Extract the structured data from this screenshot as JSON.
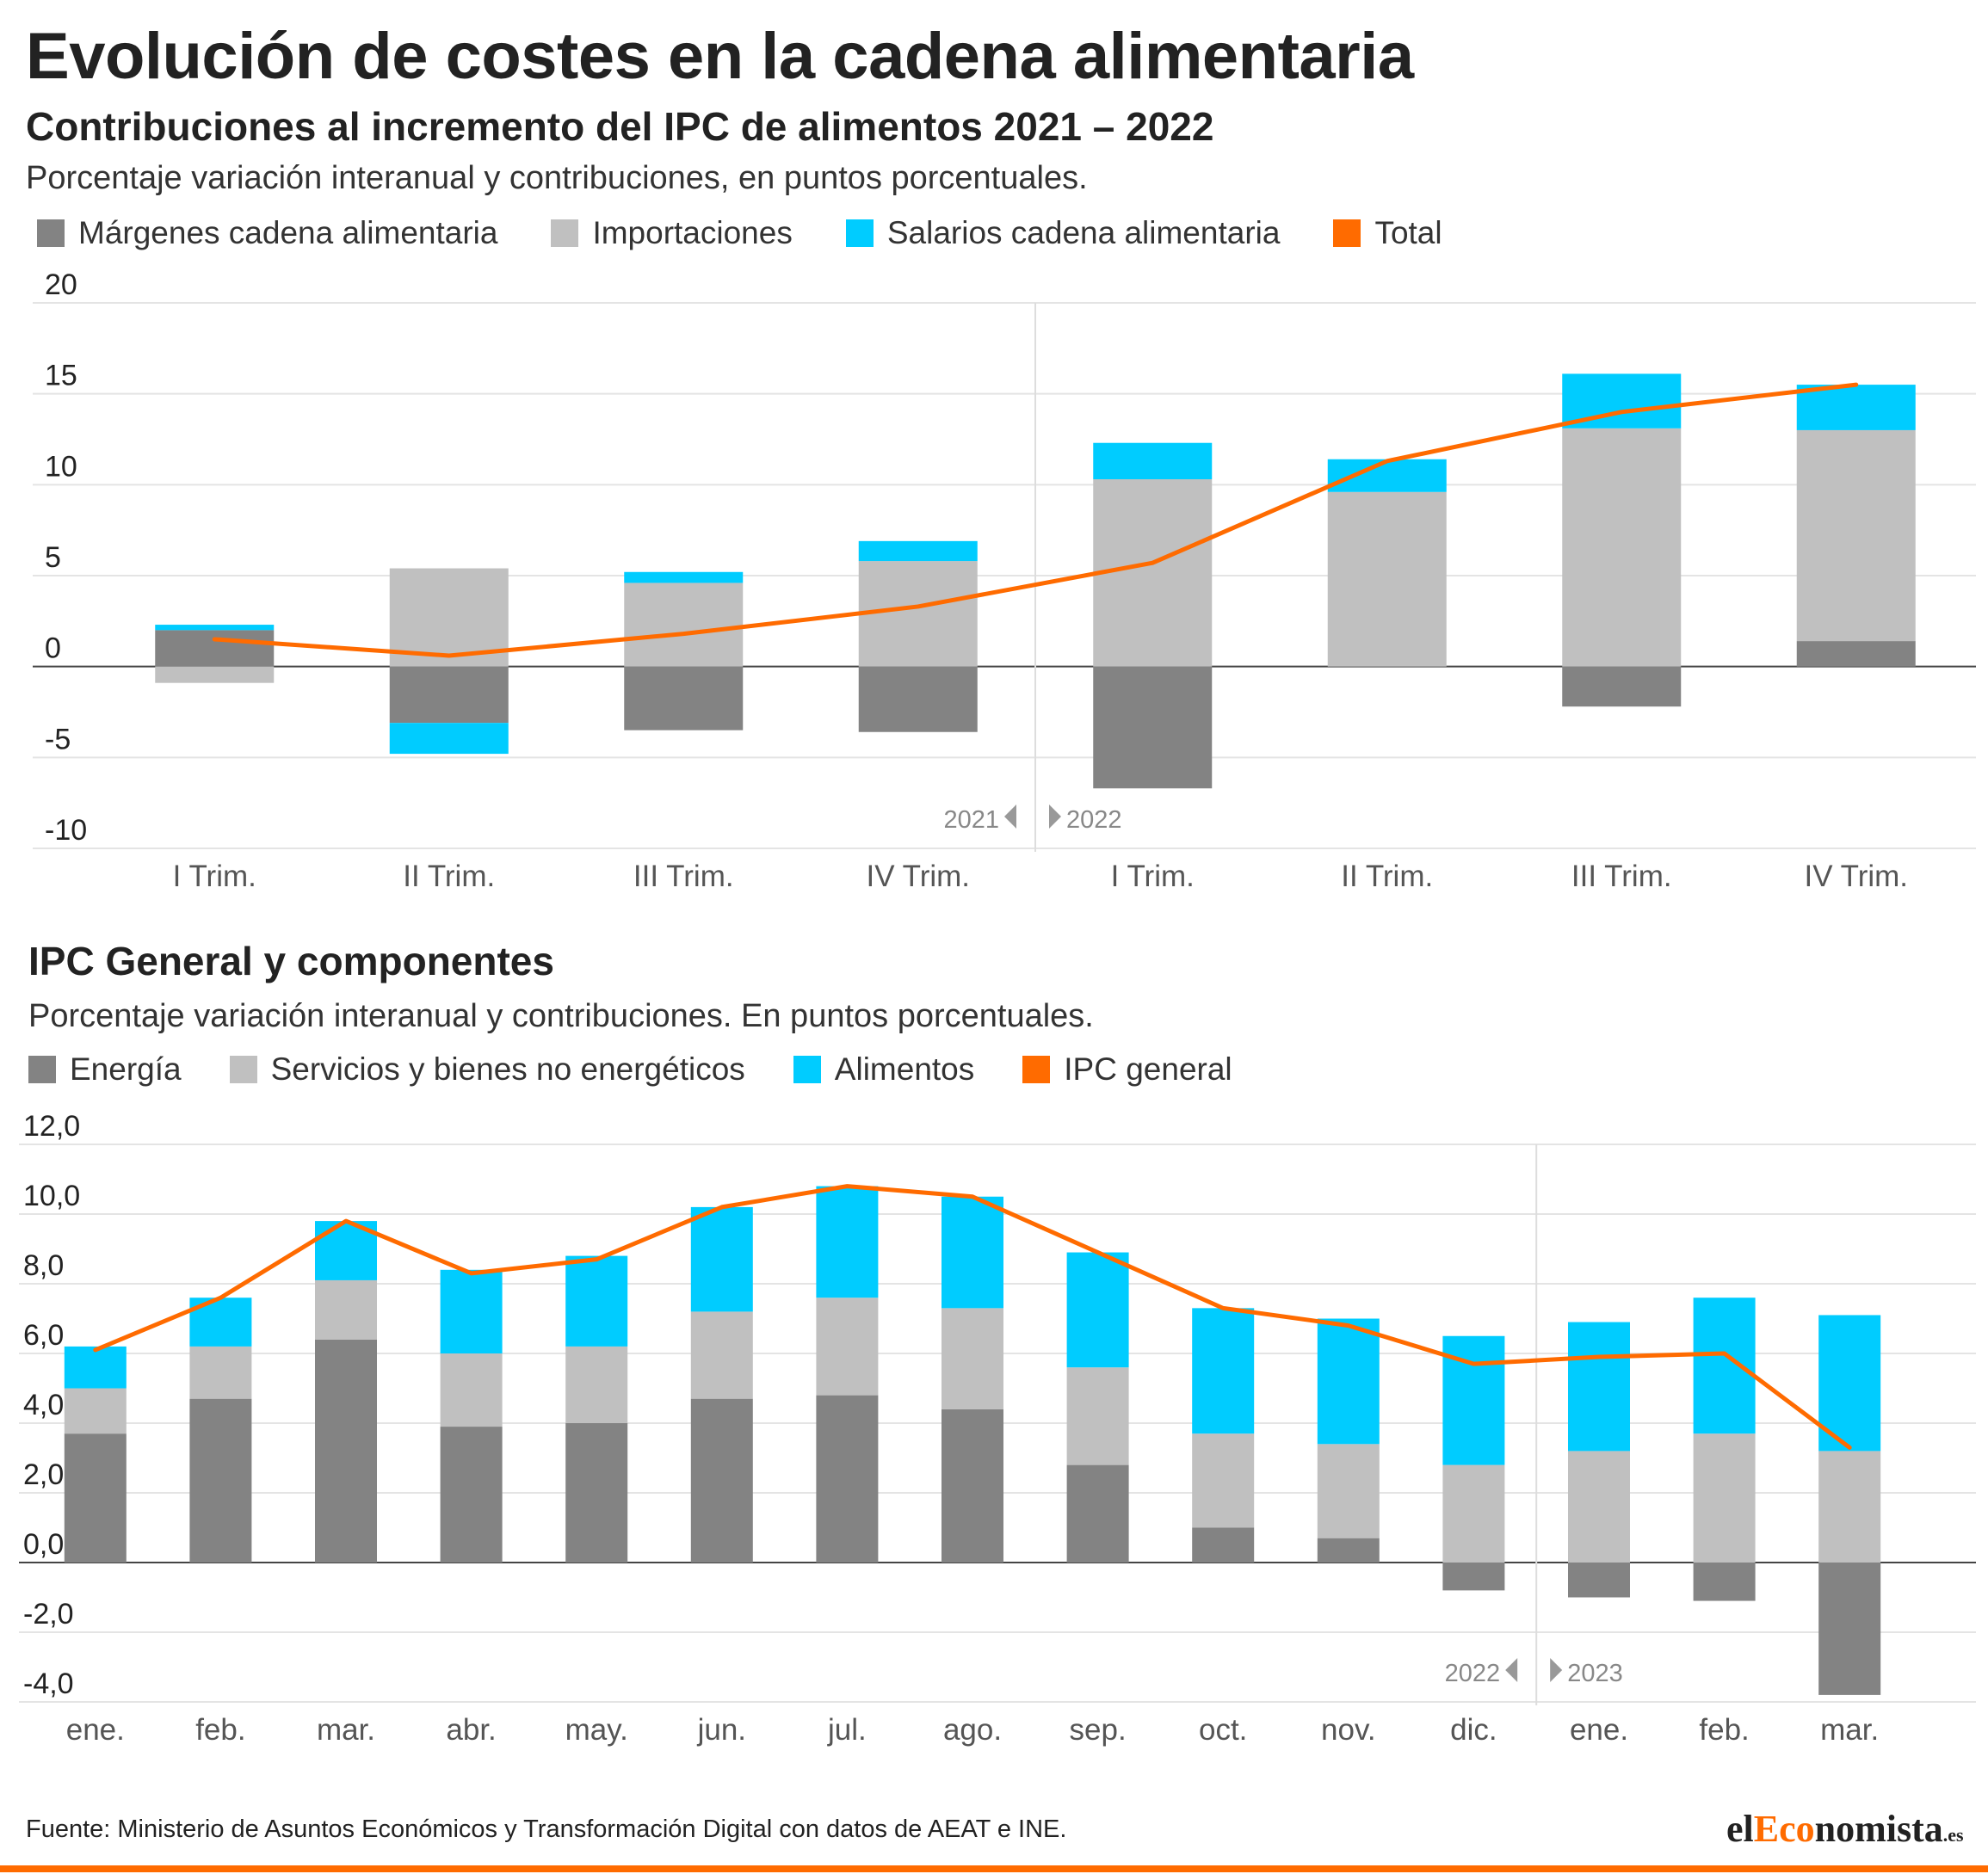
{
  "title": "Evolución de costes en la cadena alimentaria",
  "chart1": {
    "subtitle": "Contribuciones al incremento del IPC de alimentos 2021 – 2022",
    "note": "Porcentaje variación interanual y contribuciones, en puntos porcentuales.",
    "year_left": "2021",
    "year_right": "2022"
  },
  "chart2": {
    "subtitle": "IPC General y componentes",
    "note": "Porcentaje variación interanual y contribuciones. En puntos porcentuales.",
    "year_left": "2022",
    "year_right": "2023"
  },
  "footer": {
    "source": "Fuente:  Ministerio de Asuntos Económicos y Transformación Digital con datos de AEAT e INE.",
    "logo_prefix": "el",
    "logo_mid": "Eco",
    "logo_rest": "nomista",
    "logo_suffix": ".es"
  },
  "colors": {
    "dark": "#838383",
    "light": "#c0c0c0",
    "cyan": "#00ccff",
    "orange": "#ff6b00"
  },
  "chart_data": [
    {
      "type": "bar",
      "stacked": true,
      "categories": [
        "I Trim.",
        "II Trim.",
        "III Trim.",
        "IV Trim.",
        "I Trim.",
        "II Trim.",
        "III Trim.",
        "IV Trim."
      ],
      "ylim": [
        -10,
        20
      ],
      "yticks": [
        20,
        15,
        10,
        5,
        0,
        -5,
        -10
      ],
      "ytick_labels": [
        "20",
        "15",
        "10",
        "5",
        "0",
        "-5",
        "-10"
      ],
      "series": [
        {
          "name": "Márgenes cadena alimentaria",
          "color": "#838383",
          "values": [
            2.0,
            -3.1,
            -3.5,
            -3.6,
            -6.7,
            0,
            -2.2,
            1.4
          ]
        },
        {
          "name": "Importaciones",
          "color": "#c0c0c0",
          "values": [
            -0.9,
            5.4,
            4.6,
            5.8,
            10.3,
            9.6,
            13.1,
            11.6
          ]
        },
        {
          "name": "Salarios cadena alimentaria",
          "color": "#00ccff",
          "values": [
            0.3,
            -1.7,
            0.6,
            1.1,
            2.0,
            1.8,
            3.0,
            2.5
          ]
        }
      ],
      "line": {
        "name": "Total",
        "color": "#ff6b00",
        "values": [
          1.5,
          0.6,
          1.8,
          3.3,
          5.7,
          11.3,
          14.0,
          15.5
        ]
      },
      "legend_position": "top-left",
      "grid": true
    },
    {
      "type": "bar",
      "stacked": true,
      "categories": [
        "ene.",
        "feb.",
        "mar.",
        "abr.",
        "may.",
        "jun.",
        "jul.",
        "ago.",
        "sep.",
        "oct.",
        "nov.",
        "dic.",
        "ene.",
        "feb.",
        "mar."
      ],
      "ylim": [
        -4,
        12
      ],
      "yticks": [
        12,
        10,
        8,
        6,
        4,
        2,
        0,
        -2,
        -4
      ],
      "ytick_labels": [
        "12,0",
        "10,0",
        "8,0",
        "6,0",
        "4,0",
        "2,0",
        "0,0",
        "-2,0",
        "-4,0"
      ],
      "series": [
        {
          "name": "Energía",
          "color": "#838383",
          "values": [
            3.7,
            4.7,
            6.4,
            3.9,
            4.0,
            4.7,
            4.8,
            4.4,
            2.8,
            1.0,
            0.7,
            -0.8,
            -1.0,
            -1.1,
            -3.8
          ]
        },
        {
          "name": "Servicios y bienes no energéticos",
          "color": "#c0c0c0",
          "values": [
            1.3,
            1.5,
            1.7,
            2.1,
            2.2,
            2.5,
            2.8,
            2.9,
            2.8,
            2.7,
            2.7,
            2.8,
            3.2,
            3.7,
            3.2
          ]
        },
        {
          "name": "Alimentos",
          "color": "#00ccff",
          "values": [
            1.2,
            1.4,
            1.7,
            2.4,
            2.6,
            3.0,
            3.2,
            3.2,
            3.3,
            3.6,
            3.6,
            3.7,
            3.7,
            3.9,
            3.9
          ]
        }
      ],
      "line": {
        "name": "IPC general",
        "color": "#ff6b00",
        "values": [
          6.1,
          7.6,
          9.8,
          8.3,
          8.7,
          10.2,
          10.8,
          10.5,
          8.9,
          7.3,
          6.8,
          5.7,
          5.9,
          6.0,
          3.3
        ]
      },
      "legend_position": "top-left",
      "grid": true
    }
  ]
}
